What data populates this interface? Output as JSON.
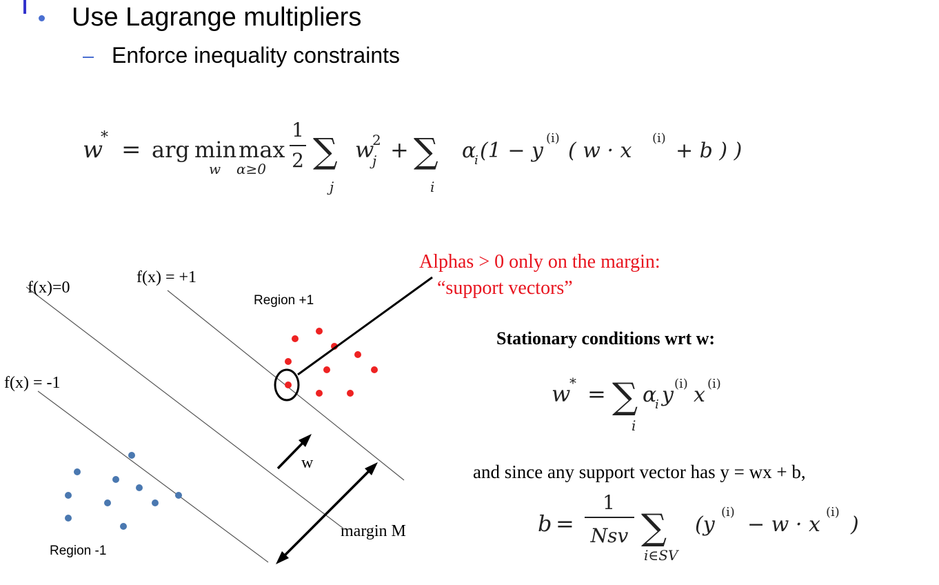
{
  "slide": {
    "bullet": "Use Lagrange multipliers",
    "subbullet": "Enforce inequality constraints"
  },
  "equations": {
    "lagrangian": {
      "lhs": "w",
      "star": "*",
      "eq": "=",
      "arg": "arg",
      "min": "min",
      "min_sub": "w",
      "max": "max",
      "max_sub": "α≥0",
      "half_num": "1",
      "half_den": "2",
      "sum1_sub": "j",
      "wj": "w",
      "wj_sub": "j",
      "wj_sup": "2",
      "plus": "+",
      "sum2_sub": "i",
      "alpha": "α",
      "alpha_sub": "i",
      "body": "(1 − y",
      "sup_i1": "(i)",
      "body2": "( w · x",
      "sup_i2": "(i)",
      "body3": "+ b ) )"
    },
    "stationary_title": "Stationary conditions wrt w:",
    "w_star": {
      "lhs": "w",
      "star": "*",
      "eq": "=",
      "sum_sub": "i",
      "alpha": "α",
      "alpha_sub": "i",
      "y": "y",
      "sup_i1": "(i)",
      "x": "x",
      "sup_i2": "(i)"
    },
    "support_note": "and since any support vector has y = wx + b,",
    "b_eq": {
      "lhs": "b",
      "eq": "=",
      "num": "1",
      "den": "Nsv",
      "sum_sub": "i∈SV",
      "body": "(y",
      "sup_i1": "(i)",
      "body2": "− w · x",
      "sup_i2": "(i)",
      "body3": ")"
    }
  },
  "diagram": {
    "labels": {
      "f0": "f(x)=0",
      "fplus": "f(x) = +1",
      "fminus": "f(x) = -1",
      "region_plus": "Region +1",
      "region_minus": "Region -1",
      "w": "w",
      "margin": "margin M"
    },
    "annotation_line1": "Alphas > 0 only on the margin:",
    "annotation_line2": "“support vectors”",
    "colors": {
      "positive": "#ee2222",
      "negative": "#4a78b0",
      "annotation": "#e8141e",
      "boundary": "#444444"
    }
  }
}
